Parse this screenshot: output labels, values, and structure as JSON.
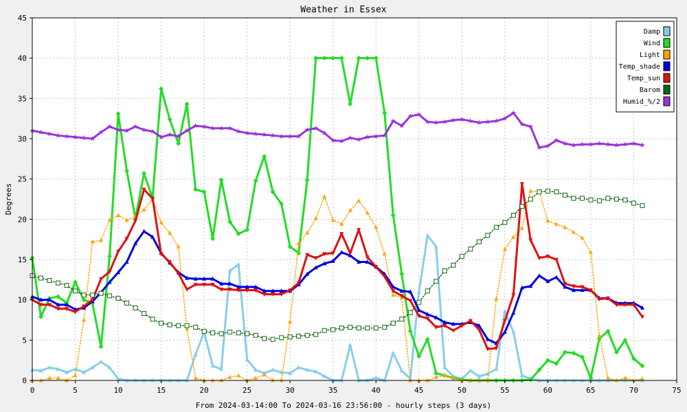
{
  "chart_data": {
    "type": "line",
    "title": "Weather in Essex",
    "xlabel": "From 2024-03-14:00 To 2024-03-16 23:56:00 - hourly steps (3 days)",
    "ylabel": "Degrees",
    "xlim": [
      0,
      75
    ],
    "ylim": [
      0,
      45
    ],
    "xticks": [
      0,
      5,
      10,
      15,
      20,
      25,
      30,
      35,
      40,
      45,
      50,
      55,
      60,
      65,
      70,
      75
    ],
    "yticks": [
      0,
      5,
      10,
      15,
      20,
      25,
      30,
      35,
      40,
      45
    ],
    "grid": true,
    "legend_position": "top-right",
    "series": [
      {
        "name": "Damp",
        "color": "#87ceeb",
        "marker": "triangle-up",
        "dash": "solid",
        "width": 3,
        "values": [
          1.3,
          1.2,
          1.6,
          1.4,
          1.0,
          1.4,
          1.0,
          1.6,
          2.3,
          1.6,
          0.2,
          0,
          0,
          0,
          0,
          0,
          0,
          0,
          0,
          3.2,
          6.0,
          1.8,
          1.4,
          13.6,
          14.4,
          2.6,
          1.3,
          0.9,
          1.3,
          1.0,
          0.9,
          1.6,
          1.3,
          1.1,
          0.5,
          0,
          0,
          4.4,
          0,
          0,
          0.3,
          0,
          3.4,
          1.2,
          0.2,
          11.0,
          18.0,
          16.6,
          1.6,
          0.5,
          0.2,
          1.2,
          0.5,
          0.8,
          1.4,
          8.6,
          6.0,
          0.6,
          0.2,
          0,
          0,
          0,
          0,
          0,
          0,
          0,
          0,
          0,
          0,
          0,
          0,
          0
        ]
      },
      {
        "name": "Wind",
        "color": "#22dd22",
        "marker": "diamond",
        "dash": "solid",
        "width": 3,
        "values": [
          15.2,
          7.9,
          10.2,
          10.4,
          9.6,
          12.2,
          10.0,
          9.6,
          4.2,
          15.4,
          33.1,
          26.0,
          20.1,
          25.7,
          22.6,
          36.2,
          32.4,
          29.4,
          34.3,
          23.7,
          23.4,
          17.6,
          24.9,
          19.7,
          18.2,
          18.7,
          24.8,
          27.8,
          23.4,
          21.9,
          16.6,
          15.8,
          24.9,
          40.0,
          40.0,
          40.0,
          40.0,
          34.3,
          40.0,
          40.0,
          40.0,
          33.2,
          20.5,
          13.2,
          6.1,
          3.0,
          5.1,
          0.9,
          0.6,
          0.3,
          0.1,
          0,
          0,
          0,
          0,
          0,
          0,
          0,
          0.1,
          1.3,
          2.5,
          2.1,
          3.5,
          3.4,
          2.9,
          0.3,
          5.2,
          6.1,
          3.5,
          5.0,
          2.7,
          1.8
        ]
      },
      {
        "name": "Light",
        "color": "#ffa500",
        "marker": "triangle-up",
        "dash": "dotted",
        "width": 1.5,
        "values": [
          0,
          0,
          0.3,
          0.3,
          0,
          0.6,
          7.5,
          17.2,
          17.4,
          19.9,
          20.5,
          19.9,
          20.3,
          21.2,
          22.5,
          19.6,
          18.3,
          16.6,
          6.4,
          0.3,
          0,
          0,
          0,
          0.4,
          0.6,
          0,
          0.3,
          0.7,
          0,
          0,
          7.3,
          17.0,
          18.3,
          20.1,
          22.8,
          19.9,
          19.4,
          21.1,
          22.3,
          20.8,
          19.0,
          15.7,
          10.6,
          10.3,
          0,
          0,
          0,
          0.4,
          0.6,
          0.3,
          0,
          0,
          0,
          0,
          10.1,
          16.3,
          17.8,
          18.9,
          23.5,
          23.4,
          19.8,
          19.4,
          19.0,
          18.4,
          17.7,
          15.9,
          5.6,
          0.3,
          0,
          0.3,
          0,
          0.2
        ]
      },
      {
        "name": "Temp_shade",
        "color": "#0000dd",
        "marker": "triangle-up",
        "dash": "solid",
        "width": 3,
        "values": [
          10.4,
          10.0,
          10.0,
          9.4,
          9.4,
          8.8,
          9.0,
          9.8,
          10.9,
          12.2,
          13.4,
          14.7,
          17.0,
          18.5,
          17.8,
          15.8,
          14.6,
          13.4,
          12.7,
          12.6,
          12.6,
          12.6,
          12.0,
          12.0,
          11.6,
          11.6,
          11.6,
          11.1,
          11.1,
          11.1,
          11.1,
          11.9,
          13.2,
          14.0,
          14.5,
          14.8,
          15.9,
          15.5,
          14.7,
          14.7,
          14.1,
          13.2,
          11.6,
          11.1,
          11.0,
          8.7,
          8.2,
          7.8,
          7.2,
          7.0,
          7.0,
          7.2,
          6.8,
          5.1,
          4.6,
          6.0,
          8.4,
          11.5,
          11.7,
          13.0,
          12.3,
          12.8,
          11.6,
          11.2,
          11.2,
          11.2,
          10.2,
          10.2,
          9.6,
          9.6,
          9.6,
          9.0
        ]
      },
      {
        "name": "Temp_sun",
        "color": "#dd1111",
        "marker": "triangle-down",
        "dash": "solid",
        "width": 3,
        "values": [
          10.0,
          9.4,
          9.4,
          8.9,
          8.9,
          8.5,
          9.2,
          10.0,
          12.6,
          13.5,
          16.0,
          17.6,
          19.8,
          23.7,
          22.6,
          15.7,
          14.7,
          13.3,
          11.3,
          11.9,
          11.9,
          11.9,
          11.3,
          11.3,
          11.2,
          11.2,
          11.2,
          10.7,
          10.7,
          10.7,
          11.2,
          12.1,
          15.6,
          15.2,
          15.7,
          15.8,
          18.2,
          15.8,
          18.7,
          15.3,
          14.1,
          12.9,
          11.1,
          10.5,
          9.9,
          8.0,
          7.7,
          6.6,
          6.8,
          6.2,
          6.8,
          7.4,
          6.3,
          3.9,
          4.0,
          7.4,
          10.6,
          24.4,
          17.4,
          15.2,
          15.4,
          15.0,
          12.0,
          11.7,
          11.6,
          11.2,
          10.1,
          10.2,
          9.4,
          9.4,
          9.4,
          7.9
        ]
      },
      {
        "name": "Barom",
        "color": "#116611",
        "marker": "square",
        "dash": "dotted",
        "width": 1.5,
        "values": [
          13.0,
          12.7,
          12.4,
          12.1,
          11.8,
          11.1,
          10.6,
          10.6,
          10.8,
          10.5,
          10.2,
          9.6,
          9.0,
          8.3,
          7.6,
          7.1,
          6.9,
          6.8,
          6.8,
          6.6,
          6.1,
          5.9,
          5.8,
          6.0,
          5.9,
          5.8,
          5.6,
          5.2,
          5.1,
          5.3,
          5.4,
          5.5,
          5.6,
          5.7,
          6.2,
          6.3,
          6.5,
          6.6,
          6.5,
          6.5,
          6.5,
          6.6,
          7.1,
          7.6,
          8.4,
          9.7,
          11.1,
          12.3,
          13.6,
          14.3,
          15.4,
          16.3,
          17.2,
          18.0,
          19.0,
          19.6,
          20.5,
          21.6,
          22.5,
          23.4,
          23.5,
          23.4,
          23.0,
          22.6,
          22.6,
          22.4,
          22.3,
          22.6,
          22.5,
          22.4,
          22.0,
          21.7
        ]
      },
      {
        "name": "Humid_%/2",
        "color": "#9933dd",
        "marker": "star",
        "dash": "solid",
        "width": 3,
        "values": [
          31.0,
          30.8,
          30.6,
          30.4,
          30.3,
          30.2,
          30.1,
          30.0,
          30.8,
          31.5,
          31.1,
          31.0,
          31.5,
          31.1,
          30.9,
          30.2,
          30.5,
          30.3,
          31.0,
          31.6,
          31.5,
          31.3,
          31.3,
          31.3,
          30.9,
          30.7,
          30.6,
          30.5,
          30.4,
          30.3,
          30.3,
          30.3,
          31.1,
          31.3,
          30.7,
          29.8,
          29.7,
          30.1,
          29.9,
          30.2,
          30.3,
          30.4,
          32.2,
          31.6,
          32.8,
          33.0,
          32.1,
          32.0,
          32.1,
          32.3,
          32.4,
          32.2,
          32.0,
          32.1,
          32.2,
          32.5,
          33.2,
          31.8,
          31.5,
          28.9,
          29.1,
          29.8,
          29.4,
          29.2,
          29.3,
          29.3,
          29.4,
          29.3,
          29.2,
          29.3,
          29.4,
          29.2
        ]
      }
    ]
  }
}
